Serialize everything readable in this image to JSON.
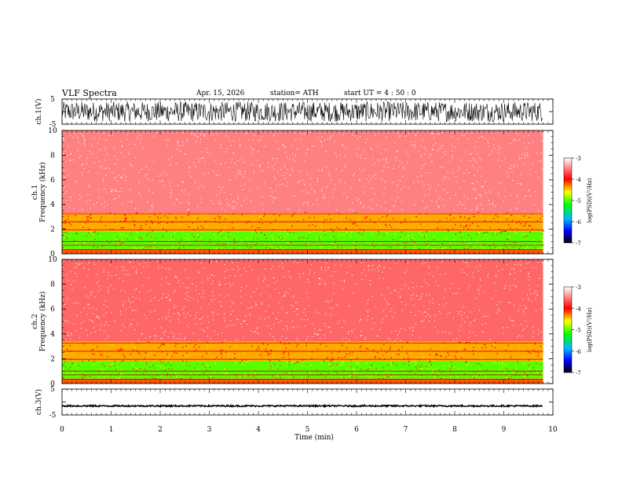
{
  "header": {
    "title": "VLF  Spectra",
    "date": "Apr. 15, 2026",
    "station": "station= ATH",
    "start": "start  UT  =    4  : 50 : 0"
  },
  "chart_data": [
    {
      "type": "line",
      "name": "ch1-waveform",
      "ylabel": "ch.1(V)",
      "ylim": [
        -5,
        5
      ],
      "ytick_labels": [
        "5",
        "-5"
      ],
      "amplitude_range": [
        -4,
        4
      ],
      "color": "#000000"
    },
    {
      "type": "heatmap",
      "name": "ch1-spectrogram",
      "ylabel_line1": "ch.1",
      "ylabel_line2": "Frequency  (kHz)",
      "ylim": [
        0,
        10
      ],
      "ytick_labels": [
        "0",
        "2",
        "4",
        "6",
        "8",
        "10"
      ],
      "xlim": [
        0,
        9.8
      ],
      "bands_khz": [
        {
          "from": 0,
          "to": 0.4,
          "level": -4.2
        },
        {
          "from": 0.4,
          "to": 1.8,
          "level": -5.0
        },
        {
          "from": 1.8,
          "to": 3.3,
          "level": -4.4
        },
        {
          "from": 3.3,
          "to": 10,
          "level": -3.5
        }
      ],
      "colorbar": {
        "label": "log(PSD)(V²/Hz)",
        "min": -7,
        "max": -3,
        "tick_labels": [
          "-3",
          "-4",
          "-5",
          "-6",
          "-7"
        ]
      }
    },
    {
      "type": "heatmap",
      "name": "ch2-spectrogram",
      "ylabel_line1": "ch.2",
      "ylabel_line2": "Frequency  (kHz)",
      "ylim": [
        0,
        10
      ],
      "ytick_labels": [
        "0",
        "2",
        "4",
        "6",
        "8",
        "10"
      ],
      "xlim": [
        0,
        9.8
      ],
      "bands_khz": [
        {
          "from": 0,
          "to": 0.4,
          "level": -4.2
        },
        {
          "from": 0.4,
          "to": 1.8,
          "level": -5.0
        },
        {
          "from": 1.8,
          "to": 3.4,
          "level": -4.4
        },
        {
          "from": 3.4,
          "to": 10,
          "level": -3.6
        }
      ],
      "colorbar": {
        "label": "log(PSD)(V²/Hz)",
        "min": -7,
        "max": -3,
        "tick_labels": [
          "-3",
          "-4",
          "-5",
          "-6",
          "-7"
        ]
      }
    },
    {
      "type": "line",
      "name": "ch3-waveform",
      "ylabel": "ch.3(V)",
      "ylim": [
        -5,
        5
      ],
      "ytick_labels": [
        "5",
        "-5"
      ],
      "baseline": -1.5,
      "amplitude_range": [
        -1.8,
        -1.2
      ],
      "color": "#000000"
    }
  ],
  "x_axis": {
    "label": "Time  (min)",
    "range": [
      0,
      10
    ],
    "data_end": 9.8,
    "tick_labels": [
      "0",
      "1",
      "2",
      "3",
      "4",
      "5",
      "6",
      "7",
      "8",
      "9",
      "10"
    ]
  }
}
